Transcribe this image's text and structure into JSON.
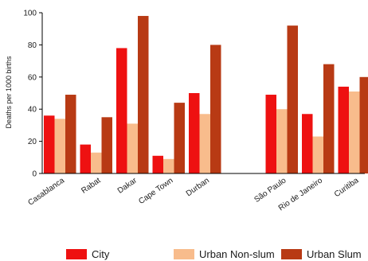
{
  "chart_data": {
    "type": "bar",
    "ylabel": "Deaths per 1000 births",
    "xlabel": "",
    "ylim": [
      0,
      100
    ],
    "yticks": [
      0,
      20,
      40,
      60,
      80,
      100
    ],
    "categories": [
      "Casablanca",
      "Rabat",
      "Dakar",
      "Cape Town",
      "Durban",
      "São Paulo",
      "Rio de Janeiro",
      "Curitiba"
    ],
    "group_break_after": 4,
    "grid": false,
    "legend": "bottom",
    "series": [
      {
        "name": "City",
        "color": "#ee1111",
        "values": [
          36,
          18,
          78,
          11,
          50,
          49,
          37,
          54
        ]
      },
      {
        "name": "Urban Non-slum",
        "color": "#f8bc8c",
        "values": [
          34,
          13,
          31,
          9,
          37,
          40,
          23,
          51
        ]
      },
      {
        "name": "Urban Slum",
        "color": "#b83a14",
        "values": [
          49,
          35,
          98,
          44,
          80,
          92,
          68,
          60
        ]
      }
    ]
  }
}
